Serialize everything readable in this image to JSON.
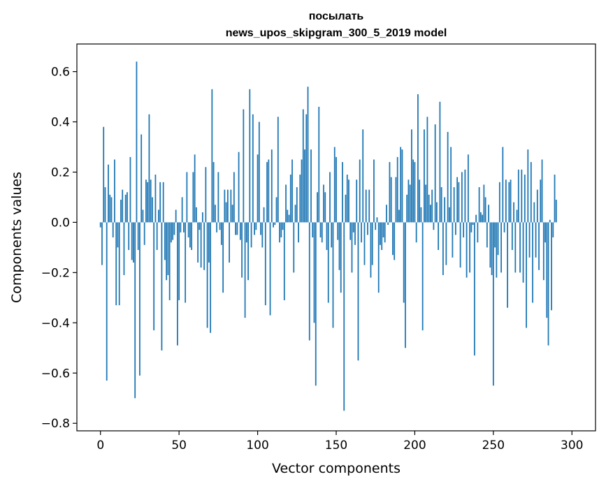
{
  "chart_data": {
    "type": "bar",
    "title": "посылать",
    "subtitle": "news_upos_skipgram_300_5_2019 model",
    "xlabel": "Vector components",
    "ylabel": "Components values",
    "xlim": [
      -15,
      315
    ],
    "ylim": [
      -0.83,
      0.71
    ],
    "xticks": [
      0,
      50,
      100,
      150,
      200,
      250,
      300
    ],
    "xtick_labels": [
      "0",
      "50",
      "100",
      "150",
      "200",
      "250",
      "300"
    ],
    "yticks": [
      -0.8,
      -0.6,
      -0.4,
      -0.2,
      0.0,
      0.2,
      0.4,
      0.6
    ],
    "ytick_labels": [
      "−0.8",
      "−0.6",
      "−0.4",
      "−0.2",
      "0.0",
      "0.2",
      "0.4",
      "0.6"
    ],
    "grid": false,
    "legend": null,
    "bar_color": "#1f77b4",
    "values": [
      -0.02,
      -0.17,
      0.38,
      0.14,
      -0.63,
      0.23,
      0.11,
      0.1,
      -0.06,
      0.25,
      -0.33,
      -0.1,
      -0.33,
      0.09,
      0.13,
      -0.21,
      0.11,
      0.12,
      -0.11,
      0.26,
      -0.15,
      -0.16,
      -0.7,
      0.64,
      -0.11,
      -0.61,
      0.35,
      0.05,
      -0.09,
      0.17,
      0.16,
      0.43,
      0.17,
      0.1,
      -0.43,
      0.19,
      -0.11,
      0.05,
      0.16,
      -0.51,
      0.16,
      -0.15,
      -0.23,
      -0.21,
      -0.31,
      -0.08,
      -0.07,
      -0.05,
      0.05,
      -0.49,
      -0.31,
      -0.04,
      0.1,
      -0.04,
      -0.32,
      0.2,
      -0.06,
      -0.1,
      -0.11,
      0.2,
      0.27,
      0.06,
      -0.16,
      -0.03,
      -0.18,
      0.04,
      -0.19,
      0.22,
      -0.42,
      -0.16,
      -0.44,
      0.53,
      0.24,
      0.07,
      -0.04,
      0.2,
      -0.03,
      -0.09,
      -0.28,
      0.13,
      0.08,
      0.13,
      -0.16,
      0.13,
      0.07,
      0.2,
      -0.05,
      -0.05,
      0.28,
      -0.07,
      -0.22,
      0.45,
      -0.38,
      -0.08,
      -0.23,
      0.53,
      -0.1,
      0.43,
      -0.05,
      -0.03,
      0.27,
      0.4,
      -0.05,
      -0.1,
      0.06,
      -0.33,
      0.24,
      0.25,
      -0.37,
      0.29,
      -0.02,
      -0.01,
      0.1,
      0.42,
      -0.08,
      -0.06,
      -0.03,
      -0.31,
      0.15,
      0.05,
      0.03,
      0.19,
      0.25,
      -0.2,
      0.07,
      0.14,
      -0.08,
      0.19,
      0.25,
      0.45,
      0.29,
      0.43,
      0.54,
      -0.47,
      0.29,
      -0.06,
      -0.4,
      -0.65,
      0.12,
      0.46,
      -0.06,
      -0.08,
      0.15,
      0.12,
      -0.11,
      -0.32,
      0.2,
      -0.1,
      -0.42,
      0.3,
      0.26,
      -0.07,
      -0.19,
      -0.28,
      0.24,
      -0.75,
      0.11,
      0.19,
      0.17,
      -0.07,
      -0.2,
      -0.04,
      -0.09,
      0.17,
      -0.55,
      0.25,
      -0.08,
      0.37,
      -0.17,
      0.13,
      -0.05,
      0.13,
      -0.22,
      -0.17,
      0.25,
      -0.03,
      0.02,
      -0.28,
      -0.09,
      -0.11,
      -0.06,
      -0.08,
      0.07,
      -0.01,
      0.24,
      0.18,
      -0.13,
      -0.15,
      0.18,
      0.26,
      0.05,
      0.3,
      0.29,
      -0.32,
      -0.5,
      0.11,
      0.17,
      0.15,
      0.37,
      0.25,
      0.24,
      -0.08,
      0.51,
      0.17,
      0.06,
      -0.43,
      0.37,
      0.15,
      0.42,
      0.11,
      0.07,
      0.13,
      -0.03,
      0.39,
      0.08,
      -0.11,
      0.48,
      0.14,
      -0.21,
      0.1,
      -0.17,
      0.36,
      0.06,
      0.3,
      -0.14,
      0.14,
      -0.05,
      0.18,
      0.16,
      -0.18,
      0.2,
      -0.06,
      0.21,
      -0.22,
      0.27,
      -0.2,
      -0.04,
      -0.01,
      -0.53,
      0.03,
      -0.08,
      0.14,
      0.04,
      0.03,
      0.15,
      0.1,
      -0.1,
      0.07,
      -0.18,
      -0.21,
      -0.65,
      -0.1,
      -0.22,
      -0.13,
      0.16,
      -0.2,
      0.3,
      -0.04,
      0.17,
      -0.34,
      0.16,
      0.17,
      -0.11,
      0.08,
      -0.2,
      0.05,
      0.21,
      -0.2,
      0.21,
      -0.24,
      0.19,
      -0.42,
      0.29,
      -0.14,
      0.24,
      -0.32,
      0.08,
      -0.14,
      0.13,
      -0.19,
      0.17,
      0.25,
      -0.23,
      -0.08,
      -0.38,
      -0.49,
      0.01,
      -0.35,
      -0.06,
      0.19,
      0.09
    ]
  }
}
